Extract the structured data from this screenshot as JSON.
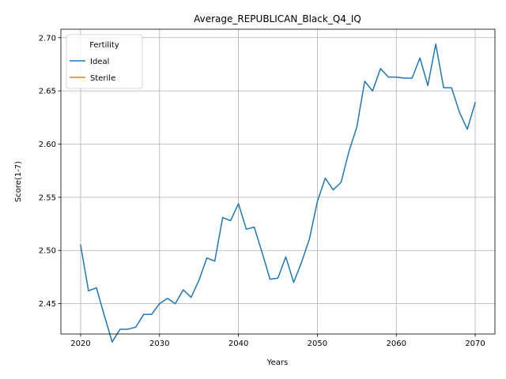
{
  "chart_data": {
    "type": "line",
    "title": "Average_REPUBLICAN_Black_Q4_IQ",
    "xlabel": "Years",
    "ylabel": "Score(1-7)",
    "xlim": [
      2017.5,
      2072.5
    ],
    "ylim": [
      2.4215,
      2.708
    ],
    "xticks": [
      2020,
      2030,
      2040,
      2050,
      2060,
      2070
    ],
    "yticks": [
      2.45,
      2.5,
      2.55,
      2.6,
      2.65,
      2.7
    ],
    "ytick_labels": [
      "2.45",
      "2.50",
      "2.55",
      "2.60",
      "2.65",
      "2.70"
    ],
    "grid": true,
    "legend": {
      "title": "Fertility",
      "position": "top-left"
    },
    "series": [
      {
        "name": "Ideal",
        "color": "#1f77b4",
        "x": [
          2020,
          2021,
          2022,
          2023,
          2024,
          2025,
          2026,
          2027,
          2028,
          2029,
          2030,
          2031,
          2032,
          2033,
          2034,
          2035,
          2036,
          2037,
          2038,
          2039,
          2040,
          2041,
          2042,
          2043,
          2044,
          2045,
          2046,
          2047,
          2048,
          2049,
          2050,
          2051,
          2052,
          2053,
          2054,
          2055,
          2056,
          2057,
          2058,
          2059,
          2060,
          2061,
          2062,
          2063,
          2064,
          2065,
          2066,
          2067,
          2068,
          2069,
          2070
        ],
        "values": [
          2.505,
          2.462,
          2.465,
          2.439,
          2.414,
          2.426,
          2.426,
          2.428,
          2.44,
          2.44,
          2.45,
          2.455,
          2.45,
          2.463,
          2.456,
          2.472,
          2.493,
          2.49,
          2.531,
          2.528,
          2.544,
          2.52,
          2.522,
          2.498,
          2.473,
          2.474,
          2.494,
          2.47,
          2.489,
          2.511,
          2.546,
          2.568,
          2.557,
          2.564,
          2.593,
          2.616,
          2.659,
          2.65,
          2.671,
          2.663,
          2.663,
          2.662,
          2.662,
          2.681,
          2.655,
          2.694,
          2.653,
          2.653,
          2.63,
          2.614,
          2.639
        ]
      },
      {
        "name": "Sterile",
        "color": "#ff7f0e",
        "x": [],
        "values": []
      }
    ]
  }
}
